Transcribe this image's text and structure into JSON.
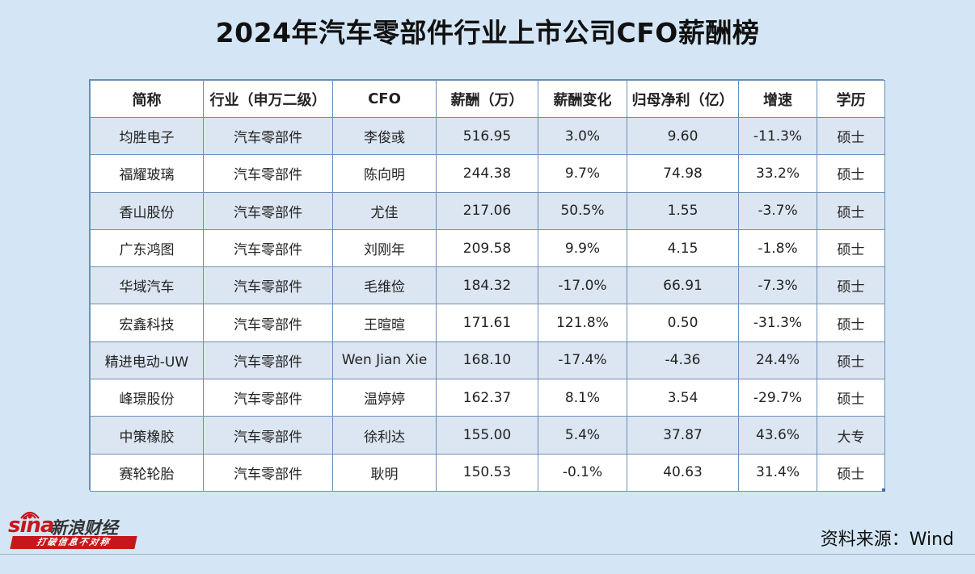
{
  "title": "2024年汽车零部件行业上市公司CFO薪酬榜",
  "table": {
    "headers": [
      "简称",
      "行业（申万二级）",
      "CFO",
      "薪酬（万）",
      "薪酬变化",
      "归母净利（亿）",
      "增速",
      "学历"
    ],
    "rows": [
      [
        "均胜电子",
        "汽车零部件",
        "李俊彧",
        "516.95",
        "3.0%",
        "9.60",
        "-11.3%",
        "硕士"
      ],
      [
        "福耀玻璃",
        "汽车零部件",
        "陈向明",
        "244.38",
        "9.7%",
        "74.98",
        "33.2%",
        "硕士"
      ],
      [
        "香山股份",
        "汽车零部件",
        "尤佳",
        "217.06",
        "50.5%",
        "1.55",
        "-3.7%",
        "硕士"
      ],
      [
        "广东鸿图",
        "汽车零部件",
        "刘刚年",
        "209.58",
        "9.9%",
        "4.15",
        "-1.8%",
        "硕士"
      ],
      [
        "华域汽车",
        "汽车零部件",
        "毛维俭",
        "184.32",
        "-17.0%",
        "66.91",
        "-7.3%",
        "硕士"
      ],
      [
        "宏鑫科技",
        "汽车零部件",
        "王暄暄",
        "171.61",
        "121.8%",
        "0.50",
        "-31.3%",
        "硕士"
      ],
      [
        "精进电动-UW",
        "汽车零部件",
        "Wen Jian Xie",
        "168.10",
        "-17.4%",
        "-4.36",
        "24.4%",
        "硕士"
      ],
      [
        "峰璟股份",
        "汽车零部件",
        "温婷婷",
        "162.37",
        "8.1%",
        "3.54",
        "-29.7%",
        "硕士"
      ],
      [
        "中策橡胶",
        "汽车零部件",
        "徐利达",
        "155.00",
        "5.4%",
        "37.87",
        "43.6%",
        "大专"
      ],
      [
        "赛轮轮胎",
        "汽车零部件",
        "耿明",
        "150.53",
        "-0.1%",
        "40.63",
        "31.4%",
        "硕士"
      ]
    ]
  },
  "logo": {
    "brand": "sina",
    "name": "新浪财经",
    "slogan": "打破信息不对称",
    "accent_color": "#c8161d"
  },
  "source": "资料来源：Wind"
}
